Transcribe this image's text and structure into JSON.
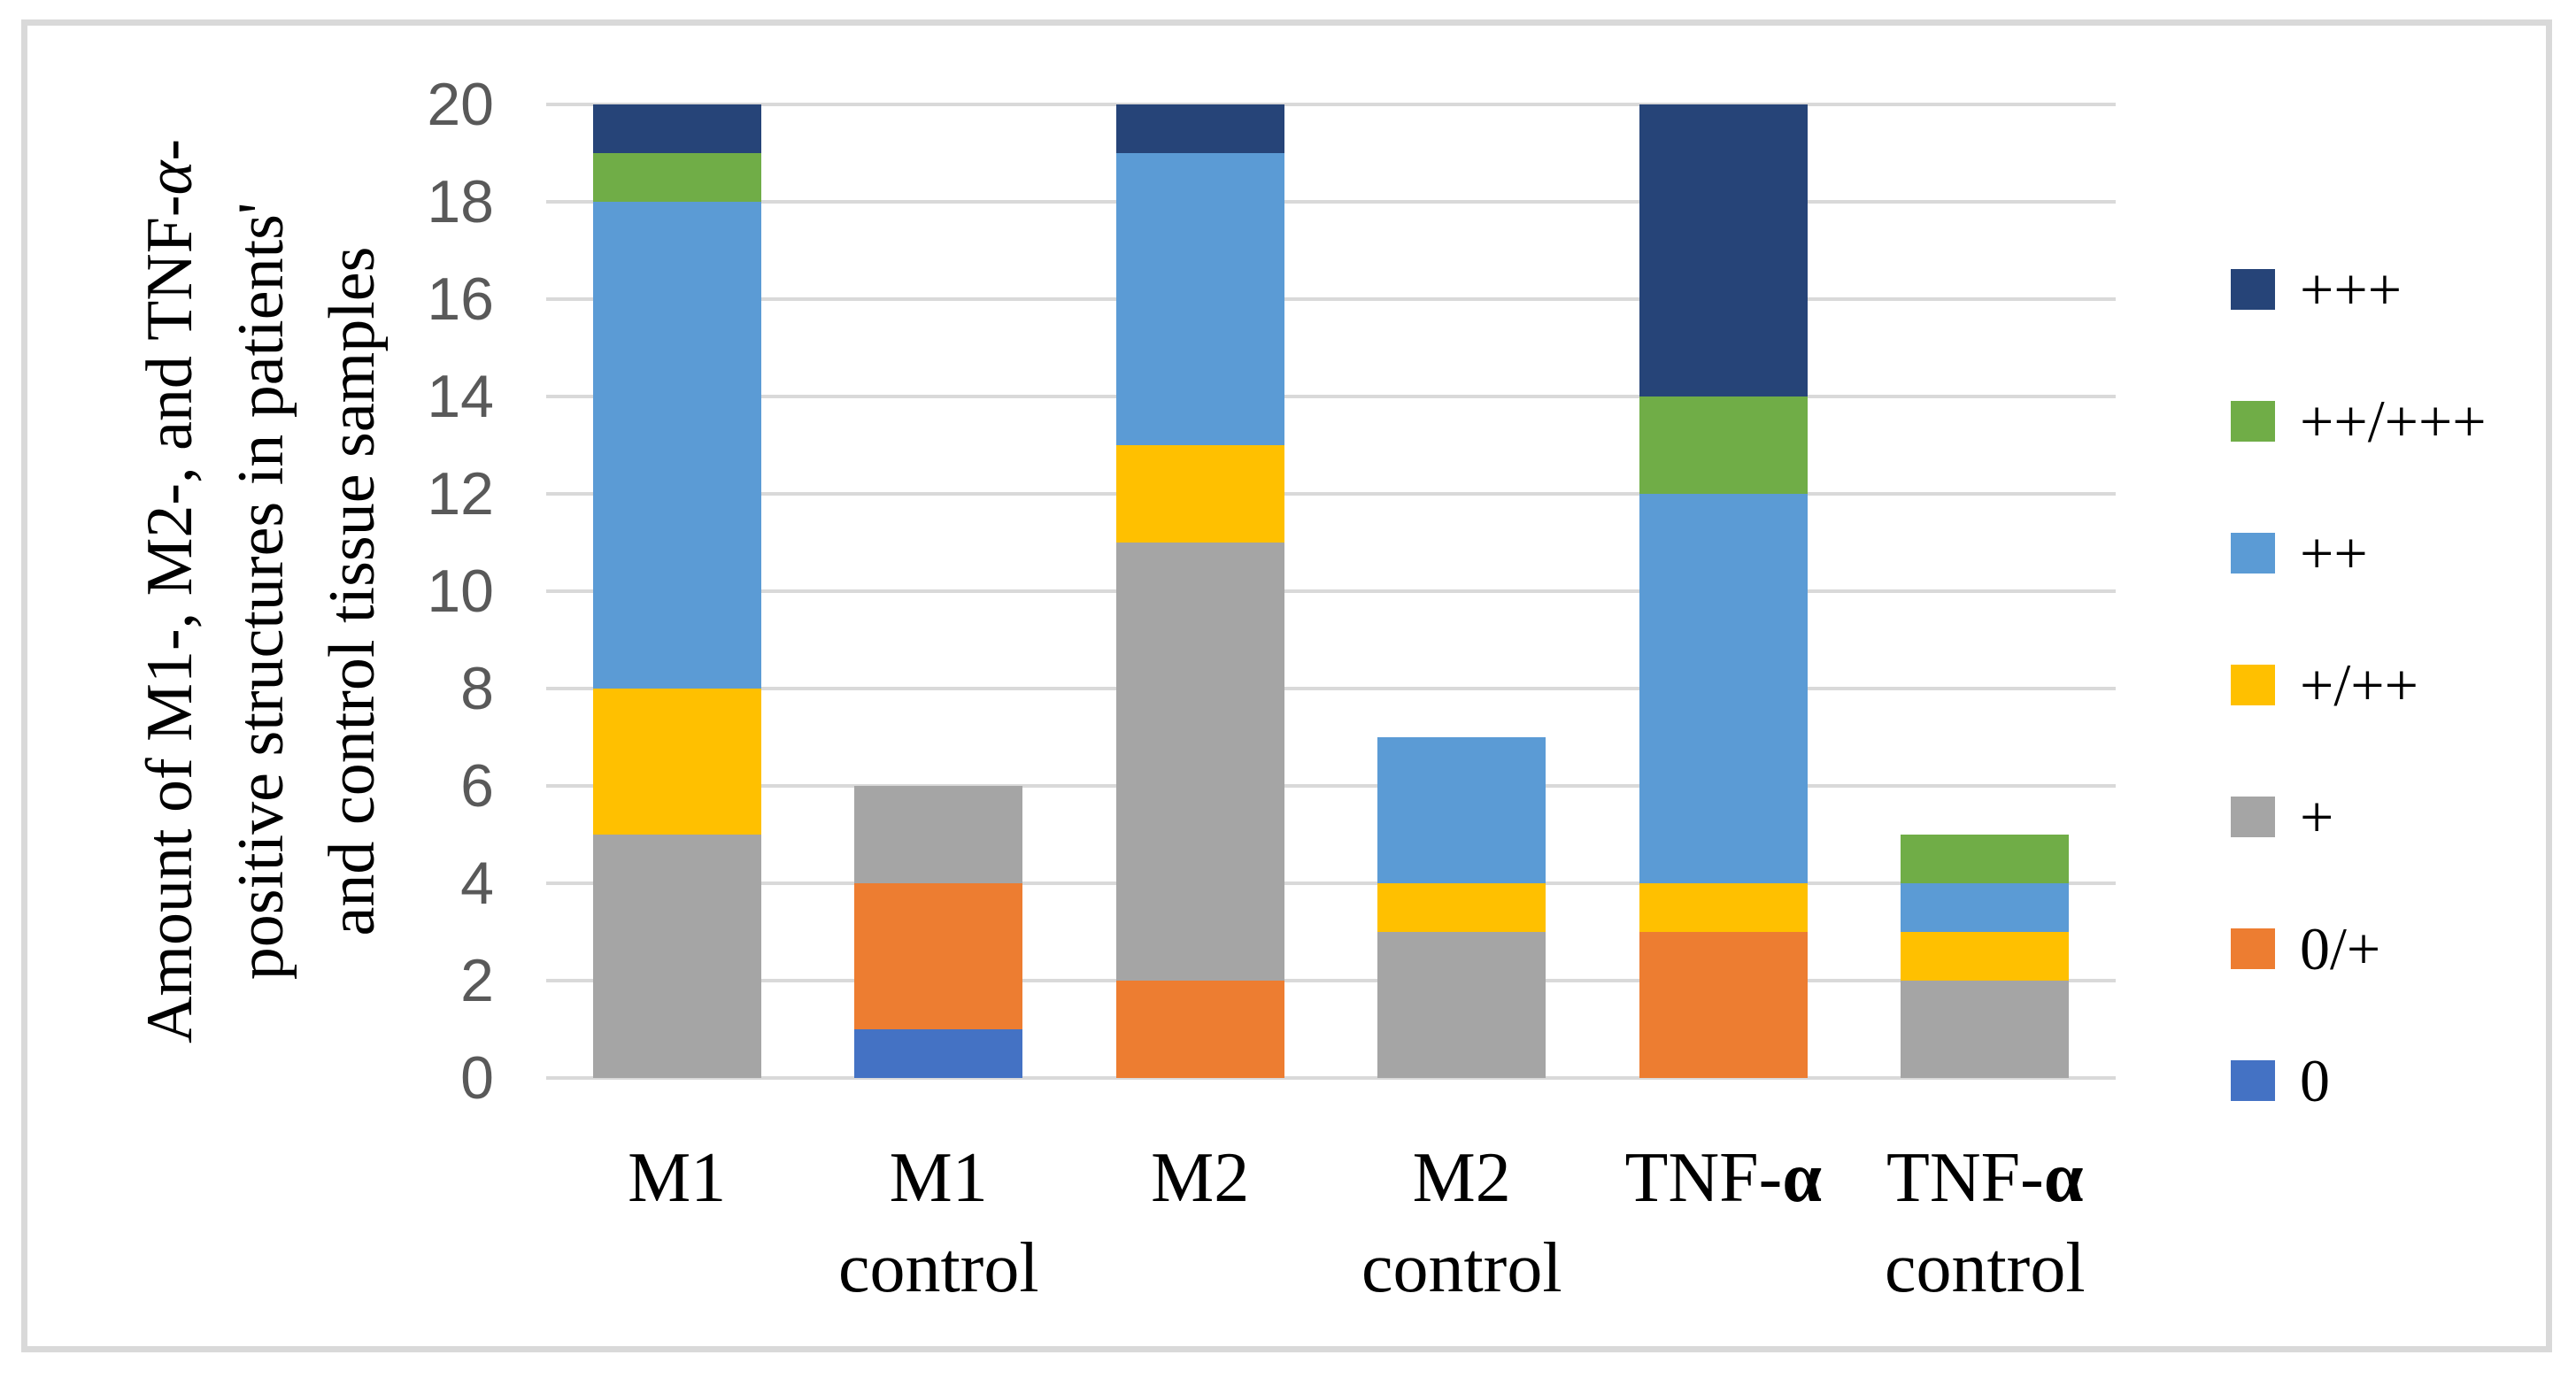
{
  "chart_data": {
    "type": "bar",
    "stacked": true,
    "categories": [
      "M1",
      "M1 control",
      "M2",
      "M2 control",
      "TNF-α",
      "TNF-α control"
    ],
    "series": [
      {
        "name": "0",
        "color": "#4472C4",
        "values": [
          0,
          1,
          0,
          0,
          0,
          0
        ]
      },
      {
        "name": "0/+",
        "color": "#ED7D31",
        "values": [
          0,
          3,
          2,
          0,
          3,
          0
        ]
      },
      {
        "name": "+",
        "color": "#A5A5A5",
        "values": [
          5,
          2,
          9,
          3,
          0,
          2
        ]
      },
      {
        "name": "+/++",
        "color": "#FFC000",
        "values": [
          3,
          0,
          2,
          1,
          1,
          1
        ]
      },
      {
        "name": "++",
        "color": "#5B9BD5",
        "values": [
          10,
          0,
          6,
          3,
          8,
          1
        ]
      },
      {
        "name": "++/+++",
        "color": "#70AD47",
        "values": [
          1,
          0,
          0,
          0,
          2,
          1
        ]
      },
      {
        "name": "+++",
        "color": "#264478",
        "values": [
          1,
          0,
          1,
          0,
          6,
          0
        ]
      }
    ],
    "ylabel": "Amount of M1-, M2-, and TNF-α-positive structures in patients' and control tissue samples",
    "ylabel_lines": [
      "Amount of M1-, M2-, and TNF-α-",
      "positive structures in patients'",
      "and control tissue samples"
    ],
    "xlabel": "",
    "ylim": [
      0,
      20
    ],
    "yticks": [
      0,
      2,
      4,
      6,
      8,
      10,
      12,
      14,
      16,
      18,
      20
    ],
    "grid": true,
    "legend": {
      "position": "right",
      "order_top_to_bottom": [
        "+++",
        "++/+++",
        "++",
        "+/++",
        "+",
        "0/+",
        "0"
      ]
    },
    "style": {
      "gridline_color": "#D9D9D9",
      "frame_border_color": "#D9D9D9",
      "tick_label_color": "#595959",
      "text_color": "#000000",
      "background": "#FFFFFF"
    }
  }
}
